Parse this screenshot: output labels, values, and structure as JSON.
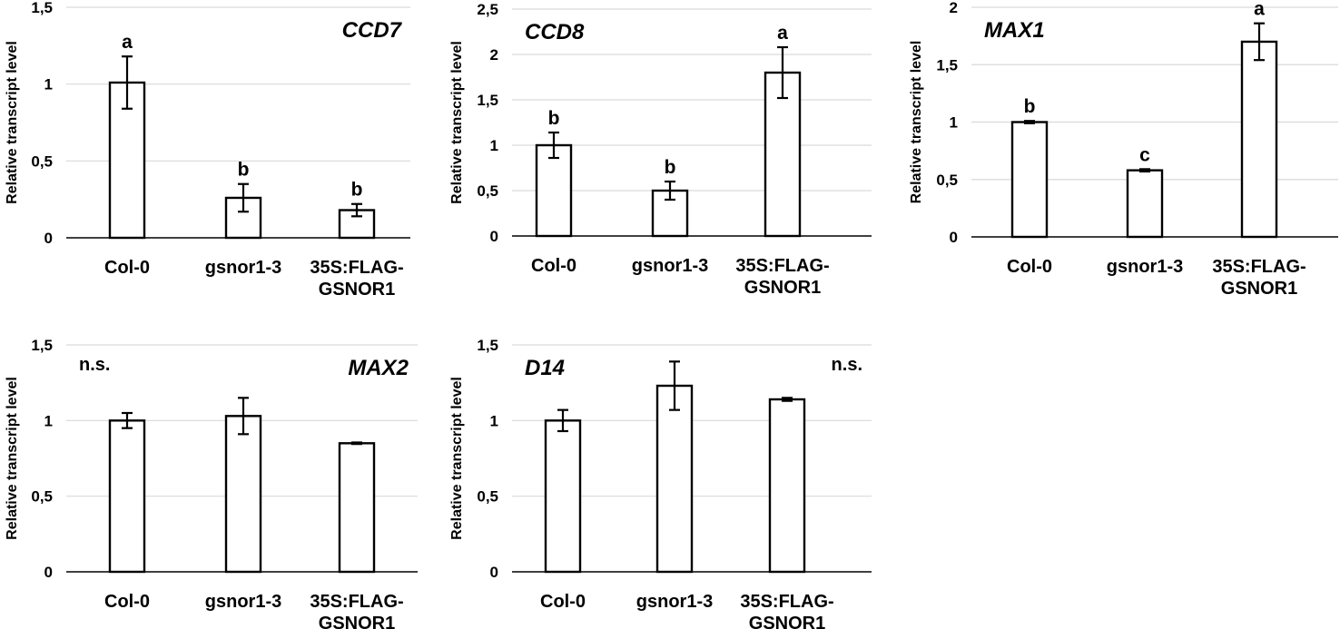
{
  "chart_data": [
    {
      "type": "bar",
      "title": "CCD7",
      "ylabel": "Relative transcript level",
      "categories": [
        "Col-0",
        "gsnor1-3",
        "35S:FLAG-GSNOR1"
      ],
      "category_lines": [
        [
          "Col-0"
        ],
        [
          "gsnor1-3"
        ],
        [
          "35S:FLAG-",
          "GSNOR1"
        ]
      ],
      "values": [
        1.01,
        0.26,
        0.18
      ],
      "errors": [
        0.17,
        0.09,
        0.04
      ],
      "significance": [
        "a",
        "b",
        "b"
      ],
      "ylim": [
        0,
        1.5
      ],
      "yticks": [
        0,
        0.5,
        1,
        1.5
      ],
      "ytick_labels": [
        "0",
        "0,5",
        "1",
        "1,5"
      ],
      "grid": true,
      "title_position": "top-right"
    },
    {
      "type": "bar",
      "title": "CCD8",
      "ylabel": "Relative transcript level",
      "categories": [
        "Col-0",
        "gsnor1-3",
        "35S:FLAG-GSNOR1"
      ],
      "category_lines": [
        [
          "Col-0"
        ],
        [
          "gsnor1-3"
        ],
        [
          "35S:FLAG-",
          "GSNOR1"
        ]
      ],
      "values": [
        1.0,
        0.5,
        1.8
      ],
      "errors": [
        0.14,
        0.1,
        0.28
      ],
      "significance": [
        "b",
        "b",
        "a"
      ],
      "ylim": [
        0,
        2.5
      ],
      "yticks": [
        0,
        0.5,
        1,
        1.5,
        2,
        2.5
      ],
      "ytick_labels": [
        "0",
        "0,5",
        "1",
        "1,5",
        "2",
        "2,5"
      ],
      "grid": true,
      "title_position": "top-left"
    },
    {
      "type": "bar",
      "title": "MAX1",
      "ylabel": "Relative transcript level",
      "categories": [
        "Col-0",
        "gsnor1-3",
        "35S:FLAG-GSNOR1"
      ],
      "category_lines": [
        [
          "Col-0"
        ],
        [
          "gsnor1-3"
        ],
        [
          "35S:FLAG-",
          "GSNOR1"
        ]
      ],
      "values": [
        1.0,
        0.58,
        1.7
      ],
      "errors": [
        0.01,
        0.01,
        0.16
      ],
      "significance": [
        "b",
        "c",
        "a"
      ],
      "ylim": [
        0,
        2
      ],
      "yticks": [
        0,
        0.5,
        1,
        1.5,
        2
      ],
      "ytick_labels": [
        "0",
        "0,5",
        "1",
        "1,5",
        "2"
      ],
      "grid": true,
      "title_position": "top-left"
    },
    {
      "type": "bar",
      "title": "MAX2",
      "annotation": "n.s.",
      "ylabel": "Relative transcript level",
      "categories": [
        "Col-0",
        "gsnor1-3",
        "35S:FLAG-GSNOR1"
      ],
      "category_lines": [
        [
          "Col-0"
        ],
        [
          "gsnor1-3"
        ],
        [
          "35S:FLAG-",
          "GSNOR1"
        ]
      ],
      "values": [
        1.0,
        1.03,
        0.85
      ],
      "errors": [
        0.05,
        0.12,
        0.005
      ],
      "significance": [
        "",
        "",
        ""
      ],
      "ylim": [
        0,
        1.5
      ],
      "yticks": [
        0,
        0.5,
        1,
        1.5
      ],
      "ytick_labels": [
        "0",
        "0,5",
        "1",
        "1,5"
      ],
      "grid": true,
      "title_position": "top-right",
      "annotation_position": "top-left"
    },
    {
      "type": "bar",
      "title": "D14",
      "annotation": "n.s.",
      "ylabel": "Relative transcript level",
      "categories": [
        "Col-0",
        "gsnor1-3",
        "35S:FLAG-GSNOR1"
      ],
      "category_lines": [
        [
          "Col-0"
        ],
        [
          "gsnor1-3"
        ],
        [
          "35S:FLAG-",
          "GSNOR1"
        ]
      ],
      "values": [
        1.0,
        1.23,
        1.14
      ],
      "errors": [
        0.07,
        0.16,
        0.01
      ],
      "significance": [
        "",
        "",
        ""
      ],
      "ylim": [
        0,
        1.5
      ],
      "yticks": [
        0,
        0.5,
        1,
        1.5
      ],
      "ytick_labels": [
        "0",
        "0,5",
        "1",
        "1,5"
      ],
      "grid": true,
      "title_position": "top-left",
      "annotation_position": "top-right"
    }
  ]
}
